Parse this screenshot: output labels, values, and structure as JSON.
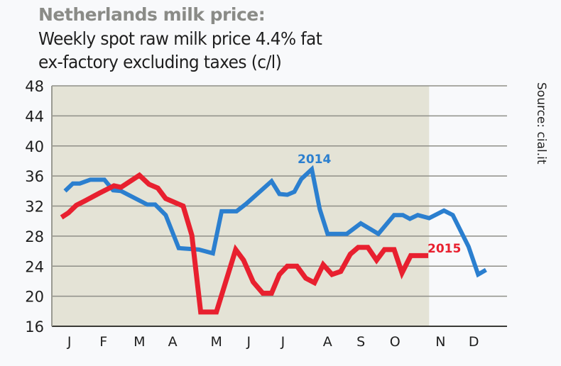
{
  "colors": {
    "series_2014": "#2b7fcf",
    "series_2015": "#e8202f",
    "shaded_area": "#e4e3d6",
    "title_gray": "#8a8b87",
    "grid": "#8f8f88"
  },
  "chart_data": {
    "type": "line",
    "title": "Netherlands milk price:",
    "subtitle_line1": "Weekly spot raw milk price 4.4% fat",
    "subtitle_line2": "ex-factory excluding taxes (c/l)",
    "source": "Source: cial.it",
    "xlabel": "",
    "ylabel": "",
    "x_unit": "week of year",
    "xlim": [
      0,
      52
    ],
    "ylim": [
      16,
      48
    ],
    "y_ticks": [
      16,
      20,
      24,
      28,
      32,
      36,
      40,
      44,
      48
    ],
    "y_tick_labels": [
      "16",
      "20",
      "24",
      "28",
      "32",
      "36",
      "40",
      "44",
      "48"
    ],
    "x_tick_labels": [
      "J",
      "F",
      "M",
      "A",
      "M",
      "J",
      "J",
      "A",
      "S",
      "O",
      "N",
      "D"
    ],
    "x_tick_weeks": [
      2.0,
      5.9,
      10.0,
      13.8,
      18.8,
      22.5,
      26.4,
      31.5,
      35.3,
      39.2,
      44.4,
      48.2
    ],
    "grid": true,
    "shaded_until_week": 43.1,
    "series": [
      {
        "name": "2014",
        "label": "2014",
        "x": [
          1.5,
          2.4,
          3.2,
          4.4,
          6.0,
          7.0,
          7.9,
          10.9,
          11.8,
          13.0,
          14.5,
          16.8,
          18.4,
          19.4,
          21.1,
          22.2,
          25.1,
          26.0,
          26.9,
          27.7,
          28.5,
          29.7,
          30.6,
          31.5,
          33.7,
          35.3,
          37.3,
          39.1,
          40.1,
          40.9,
          41.8,
          43.1,
          44.8,
          45.8,
          47.6,
          48.7,
          49.6
        ],
        "values": [
          34.0,
          35.0,
          35.0,
          35.5,
          35.5,
          34.1,
          34.0,
          32.2,
          32.2,
          30.8,
          26.4,
          26.2,
          25.7,
          31.3,
          31.3,
          32.3,
          35.3,
          33.6,
          33.5,
          33.9,
          35.6,
          36.9,
          31.6,
          28.3,
          28.3,
          29.7,
          28.3,
          30.8,
          30.8,
          30.3,
          30.8,
          30.4,
          31.4,
          30.8,
          26.6,
          22.9,
          23.5
        ]
      },
      {
        "name": "2015",
        "label": "2015",
        "x": [
          1.1,
          1.9,
          2.8,
          3.8,
          5.4,
          7.1,
          7.9,
          10.0,
          11.1,
          12.1,
          13.0,
          15.0,
          16.0,
          17.0,
          18.8,
          21.0,
          21.9,
          23.0,
          24.1,
          25.1,
          26.0,
          26.9,
          28.0,
          29.0,
          30.0,
          31.0,
          32.0,
          33.0,
          34.1,
          35.0,
          36.1,
          37.1,
          38.0,
          39.1,
          40.0,
          41.0,
          43.0
        ],
        "values": [
          30.5,
          31.1,
          32.1,
          32.7,
          33.7,
          34.7,
          34.5,
          36.1,
          34.9,
          34.4,
          33.0,
          32.0,
          28.1,
          17.9,
          17.9,
          26.2,
          24.8,
          21.9,
          20.4,
          20.4,
          22.9,
          24.0,
          24.0,
          22.4,
          21.8,
          24.2,
          22.9,
          23.3,
          25.6,
          26.5,
          26.5,
          24.8,
          26.2,
          26.2,
          23.1,
          25.4,
          25.4
        ]
      }
    ]
  }
}
